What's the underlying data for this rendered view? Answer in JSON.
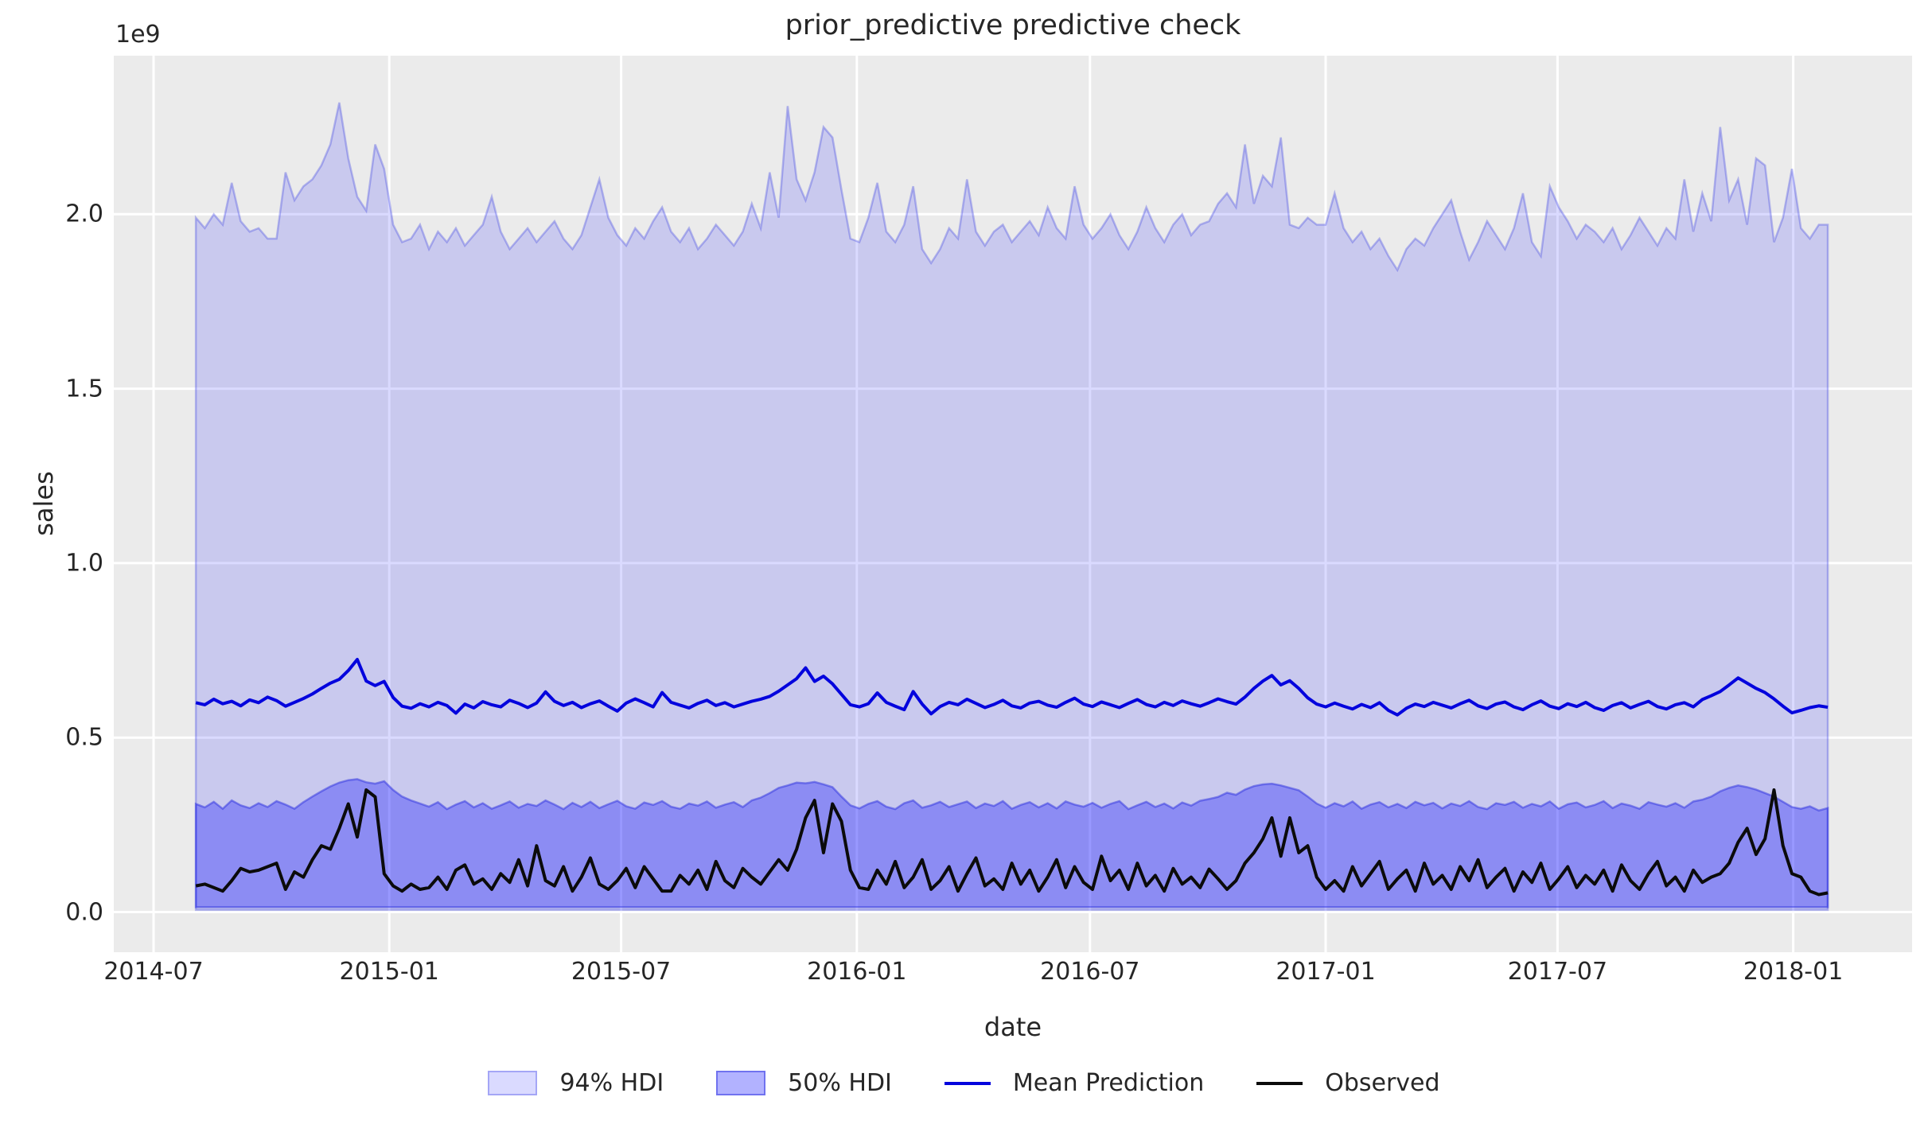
{
  "title": "prior_predictive predictive check",
  "axes": {
    "ylabel": "sales",
    "xlabel": "date",
    "offset_text": "1e9",
    "yticks": [
      {
        "label": "0.0",
        "value": 0.0
      },
      {
        "label": "0.5",
        "value": 0.5
      },
      {
        "label": "1.0",
        "value": 1.0
      },
      {
        "label": "1.5",
        "value": 1.5
      },
      {
        "label": "2.0",
        "value": 2.0
      }
    ],
    "xticks": [
      {
        "label": "2014-07",
        "date": "2014-07-01"
      },
      {
        "label": "2015-01",
        "date": "2015-01-01"
      },
      {
        "label": "2015-07",
        "date": "2015-07-01"
      },
      {
        "label": "2016-01",
        "date": "2016-01-01"
      },
      {
        "label": "2016-07",
        "date": "2016-07-01"
      },
      {
        "label": "2017-01",
        "date": "2017-01-01"
      },
      {
        "label": "2017-07",
        "date": "2017-07-01"
      },
      {
        "label": "2018-01",
        "date": "2018-01-01"
      }
    ]
  },
  "legend": [
    {
      "label": "94% HDI",
      "type": "patch",
      "fill": "rgba(0,0,255,0.145)",
      "border": "rgba(40,45,225,0.30)"
    },
    {
      "label": "50% HDI",
      "type": "patch",
      "fill": "rgba(0,0,255,0.30)",
      "border": "rgba(30,35,220,0.45)"
    },
    {
      "label": "Mean Prediction",
      "type": "line",
      "color": "#0404dd"
    },
    {
      "label": "Observed",
      "type": "line",
      "color": "#0b0b0b"
    }
  ],
  "colors": {
    "plot_background": "#ebebeb",
    "gridline": "#ffffff",
    "hdi94_fill": "rgba(0,0,255,0.145)",
    "hdi94_edge": "rgba(40,45,225,0.30)",
    "hdi50_fill": "rgba(0,0,255,0.30)",
    "hdi50_edge": "rgba(30,35,220,0.45)",
    "mean_line": "#0404dd",
    "observed_line": "#0b0b0b",
    "text": "#262626"
  },
  "chart_data": {
    "type": "line",
    "title": "prior_predictive predictive check",
    "xlabel": "date",
    "ylabel": "sales",
    "y_units": "1e9",
    "x_start_date": "2014-08-03",
    "x_step_days": 7,
    "n_points": 183,
    "xlim": [
      "2014-06-01",
      "2018-04-01"
    ],
    "ylim_1e9": [
      -0.114,
      2.457
    ],
    "grid": true,
    "legend_position": "bottom-center",
    "hdi94_lower_const": 0.006,
    "hdi50_lower_const": 0.014,
    "hdi94_upper": [
      1.99,
      1.96,
      2.0,
      1.97,
      2.09,
      1.98,
      1.95,
      1.96,
      1.93,
      1.93,
      2.12,
      2.04,
      2.08,
      2.1,
      2.14,
      2.2,
      2.32,
      2.16,
      2.05,
      2.01,
      2.2,
      2.13,
      1.97,
      1.92,
      1.93,
      1.97,
      1.9,
      1.95,
      1.92,
      1.96,
      1.91,
      1.94,
      1.97,
      2.05,
      1.95,
      1.9,
      1.93,
      1.96,
      1.92,
      1.95,
      1.98,
      1.93,
      1.9,
      1.94,
      2.02,
      2.1,
      1.99,
      1.94,
      1.91,
      1.96,
      1.93,
      1.98,
      2.02,
      1.95,
      1.92,
      1.96,
      1.9,
      1.93,
      1.97,
      1.94,
      1.91,
      1.95,
      2.03,
      1.96,
      2.12,
      1.99,
      2.31,
      2.1,
      2.04,
      2.12,
      2.25,
      2.22,
      2.07,
      1.93,
      1.92,
      1.99,
      2.09,
      1.95,
      1.92,
      1.97,
      2.08,
      1.9,
      1.86,
      1.9,
      1.96,
      1.93,
      2.1,
      1.95,
      1.91,
      1.95,
      1.97,
      1.92,
      1.95,
      1.98,
      1.94,
      2.02,
      1.96,
      1.93,
      2.08,
      1.97,
      1.93,
      1.96,
      2.0,
      1.94,
      1.9,
      1.95,
      2.02,
      1.96,
      1.92,
      1.97,
      2.0,
      1.94,
      1.97,
      1.98,
      2.03,
      2.06,
      2.02,
      2.2,
      2.03,
      2.11,
      2.08,
      2.22,
      1.97,
      1.96,
      1.99,
      1.97,
      1.97,
      2.06,
      1.96,
      1.92,
      1.95,
      1.9,
      1.93,
      1.88,
      1.84,
      1.9,
      1.93,
      1.91,
      1.96,
      2.0,
      2.04,
      1.95,
      1.87,
      1.92,
      1.98,
      1.94,
      1.9,
      1.96,
      2.06,
      1.92,
      1.88,
      2.08,
      2.02,
      1.98,
      1.93,
      1.97,
      1.95,
      1.92,
      1.96,
      1.9,
      1.94,
      1.99,
      1.95,
      1.91,
      1.96,
      1.93,
      2.1,
      1.95,
      2.06,
      1.98,
      2.25,
      2.04,
      2.1,
      1.97,
      2.16,
      2.14,
      1.92,
      1.99,
      2.13,
      1.96,
      1.93,
      1.97,
      1.97
    ],
    "hdi50_upper": [
      0.31,
      0.3,
      0.316,
      0.296,
      0.32,
      0.306,
      0.298,
      0.312,
      0.301,
      0.318,
      0.308,
      0.296,
      0.315,
      0.331,
      0.346,
      0.36,
      0.371,
      0.378,
      0.381,
      0.372,
      0.368,
      0.375,
      0.35,
      0.331,
      0.32,
      0.311,
      0.302,
      0.315,
      0.295,
      0.308,
      0.318,
      0.3,
      0.312,
      0.296,
      0.306,
      0.317,
      0.299,
      0.31,
      0.304,
      0.32,
      0.308,
      0.295,
      0.313,
      0.301,
      0.316,
      0.298,
      0.309,
      0.319,
      0.303,
      0.296,
      0.314,
      0.307,
      0.318,
      0.302,
      0.296,
      0.311,
      0.305,
      0.317,
      0.299,
      0.308,
      0.315,
      0.301,
      0.32,
      0.328,
      0.341,
      0.356,
      0.363,
      0.371,
      0.369,
      0.373,
      0.366,
      0.358,
      0.331,
      0.306,
      0.297,
      0.31,
      0.318,
      0.302,
      0.295,
      0.312,
      0.32,
      0.299,
      0.306,
      0.316,
      0.301,
      0.309,
      0.317,
      0.298,
      0.311,
      0.304,
      0.318,
      0.296,
      0.307,
      0.315,
      0.3,
      0.312,
      0.297,
      0.317,
      0.308,
      0.302,
      0.313,
      0.299,
      0.31,
      0.318,
      0.295,
      0.306,
      0.316,
      0.301,
      0.311,
      0.297,
      0.314,
      0.305,
      0.319,
      0.324,
      0.33,
      0.342,
      0.336,
      0.351,
      0.361,
      0.366,
      0.368,
      0.363,
      0.356,
      0.349,
      0.331,
      0.311,
      0.299,
      0.312,
      0.303,
      0.317,
      0.296,
      0.308,
      0.315,
      0.3,
      0.31,
      0.298,
      0.316,
      0.306,
      0.313,
      0.297,
      0.311,
      0.304,
      0.318,
      0.301,
      0.295,
      0.312,
      0.307,
      0.316,
      0.299,
      0.31,
      0.303,
      0.317,
      0.296,
      0.309,
      0.314,
      0.3,
      0.307,
      0.318,
      0.298,
      0.311,
      0.305,
      0.296,
      0.315,
      0.308,
      0.302,
      0.312,
      0.299,
      0.317,
      0.322,
      0.331,
      0.346,
      0.356,
      0.363,
      0.358,
      0.351,
      0.341,
      0.331,
      0.316,
      0.301,
      0.296,
      0.303,
      0.291,
      0.298
    ],
    "mean_prediction": [
      0.6,
      0.594,
      0.61,
      0.597,
      0.604,
      0.591,
      0.608,
      0.6,
      0.616,
      0.606,
      0.59,
      0.601,
      0.612,
      0.625,
      0.641,
      0.656,
      0.667,
      0.692,
      0.724,
      0.662,
      0.649,
      0.661,
      0.615,
      0.59,
      0.584,
      0.597,
      0.588,
      0.601,
      0.592,
      0.57,
      0.596,
      0.585,
      0.603,
      0.594,
      0.588,
      0.607,
      0.598,
      0.586,
      0.599,
      0.631,
      0.604,
      0.592,
      0.601,
      0.586,
      0.597,
      0.605,
      0.59,
      0.576,
      0.599,
      0.611,
      0.6,
      0.588,
      0.629,
      0.601,
      0.593,
      0.585,
      0.598,
      0.607,
      0.592,
      0.6,
      0.588,
      0.596,
      0.604,
      0.61,
      0.618,
      0.633,
      0.651,
      0.669,
      0.7,
      0.661,
      0.676,
      0.654,
      0.624,
      0.594,
      0.588,
      0.597,
      0.628,
      0.601,
      0.59,
      0.58,
      0.632,
      0.596,
      0.568,
      0.589,
      0.601,
      0.594,
      0.61,
      0.598,
      0.586,
      0.595,
      0.607,
      0.591,
      0.585,
      0.599,
      0.604,
      0.593,
      0.587,
      0.601,
      0.613,
      0.596,
      0.589,
      0.602,
      0.594,
      0.586,
      0.598,
      0.609,
      0.595,
      0.588,
      0.601,
      0.592,
      0.605,
      0.597,
      0.59,
      0.6,
      0.611,
      0.603,
      0.596,
      0.616,
      0.641,
      0.662,
      0.678,
      0.651,
      0.663,
      0.641,
      0.614,
      0.596,
      0.588,
      0.599,
      0.59,
      0.582,
      0.595,
      0.586,
      0.6,
      0.578,
      0.565,
      0.584,
      0.596,
      0.589,
      0.601,
      0.593,
      0.585,
      0.597,
      0.607,
      0.591,
      0.583,
      0.596,
      0.602,
      0.588,
      0.58,
      0.594,
      0.605,
      0.59,
      0.583,
      0.597,
      0.589,
      0.601,
      0.586,
      0.578,
      0.592,
      0.6,
      0.585,
      0.595,
      0.604,
      0.589,
      0.582,
      0.594,
      0.6,
      0.588,
      0.609,
      0.62,
      0.632,
      0.651,
      0.671,
      0.656,
      0.641,
      0.629,
      0.611,
      0.59,
      0.571,
      0.578,
      0.586,
      0.591,
      0.587
    ],
    "observed": [
      0.075,
      0.08,
      0.07,
      0.06,
      0.09,
      0.125,
      0.115,
      0.12,
      0.13,
      0.14,
      0.065,
      0.115,
      0.1,
      0.15,
      0.19,
      0.18,
      0.24,
      0.31,
      0.215,
      0.35,
      0.33,
      0.11,
      0.075,
      0.06,
      0.08,
      0.065,
      0.07,
      0.1,
      0.065,
      0.12,
      0.135,
      0.08,
      0.095,
      0.065,
      0.11,
      0.085,
      0.15,
      0.075,
      0.19,
      0.09,
      0.075,
      0.13,
      0.06,
      0.1,
      0.155,
      0.08,
      0.065,
      0.09,
      0.125,
      0.07,
      0.13,
      0.095,
      0.06,
      0.06,
      0.105,
      0.08,
      0.12,
      0.065,
      0.145,
      0.09,
      0.07,
      0.125,
      0.1,
      0.08,
      0.115,
      0.15,
      0.12,
      0.18,
      0.27,
      0.32,
      0.17,
      0.31,
      0.26,
      0.12,
      0.07,
      0.065,
      0.12,
      0.08,
      0.145,
      0.07,
      0.1,
      0.15,
      0.065,
      0.09,
      0.13,
      0.06,
      0.11,
      0.155,
      0.075,
      0.095,
      0.065,
      0.14,
      0.08,
      0.12,
      0.06,
      0.1,
      0.15,
      0.07,
      0.13,
      0.085,
      0.065,
      0.16,
      0.09,
      0.12,
      0.065,
      0.14,
      0.075,
      0.105,
      0.06,
      0.125,
      0.08,
      0.1,
      0.07,
      0.123,
      0.095,
      0.065,
      0.09,
      0.14,
      0.17,
      0.21,
      0.27,
      0.16,
      0.27,
      0.17,
      0.19,
      0.1,
      0.065,
      0.09,
      0.06,
      0.13,
      0.075,
      0.11,
      0.145,
      0.065,
      0.095,
      0.12,
      0.06,
      0.14,
      0.08,
      0.105,
      0.065,
      0.13,
      0.09,
      0.15,
      0.07,
      0.1,
      0.125,
      0.06,
      0.115,
      0.085,
      0.14,
      0.065,
      0.095,
      0.13,
      0.07,
      0.105,
      0.08,
      0.12,
      0.06,
      0.135,
      0.09,
      0.065,
      0.11,
      0.145,
      0.075,
      0.1,
      0.06,
      0.12,
      0.085,
      0.1,
      0.11,
      0.14,
      0.2,
      0.24,
      0.165,
      0.21,
      0.35,
      0.19,
      0.11,
      0.1,
      0.06,
      0.05,
      0.055
    ]
  }
}
